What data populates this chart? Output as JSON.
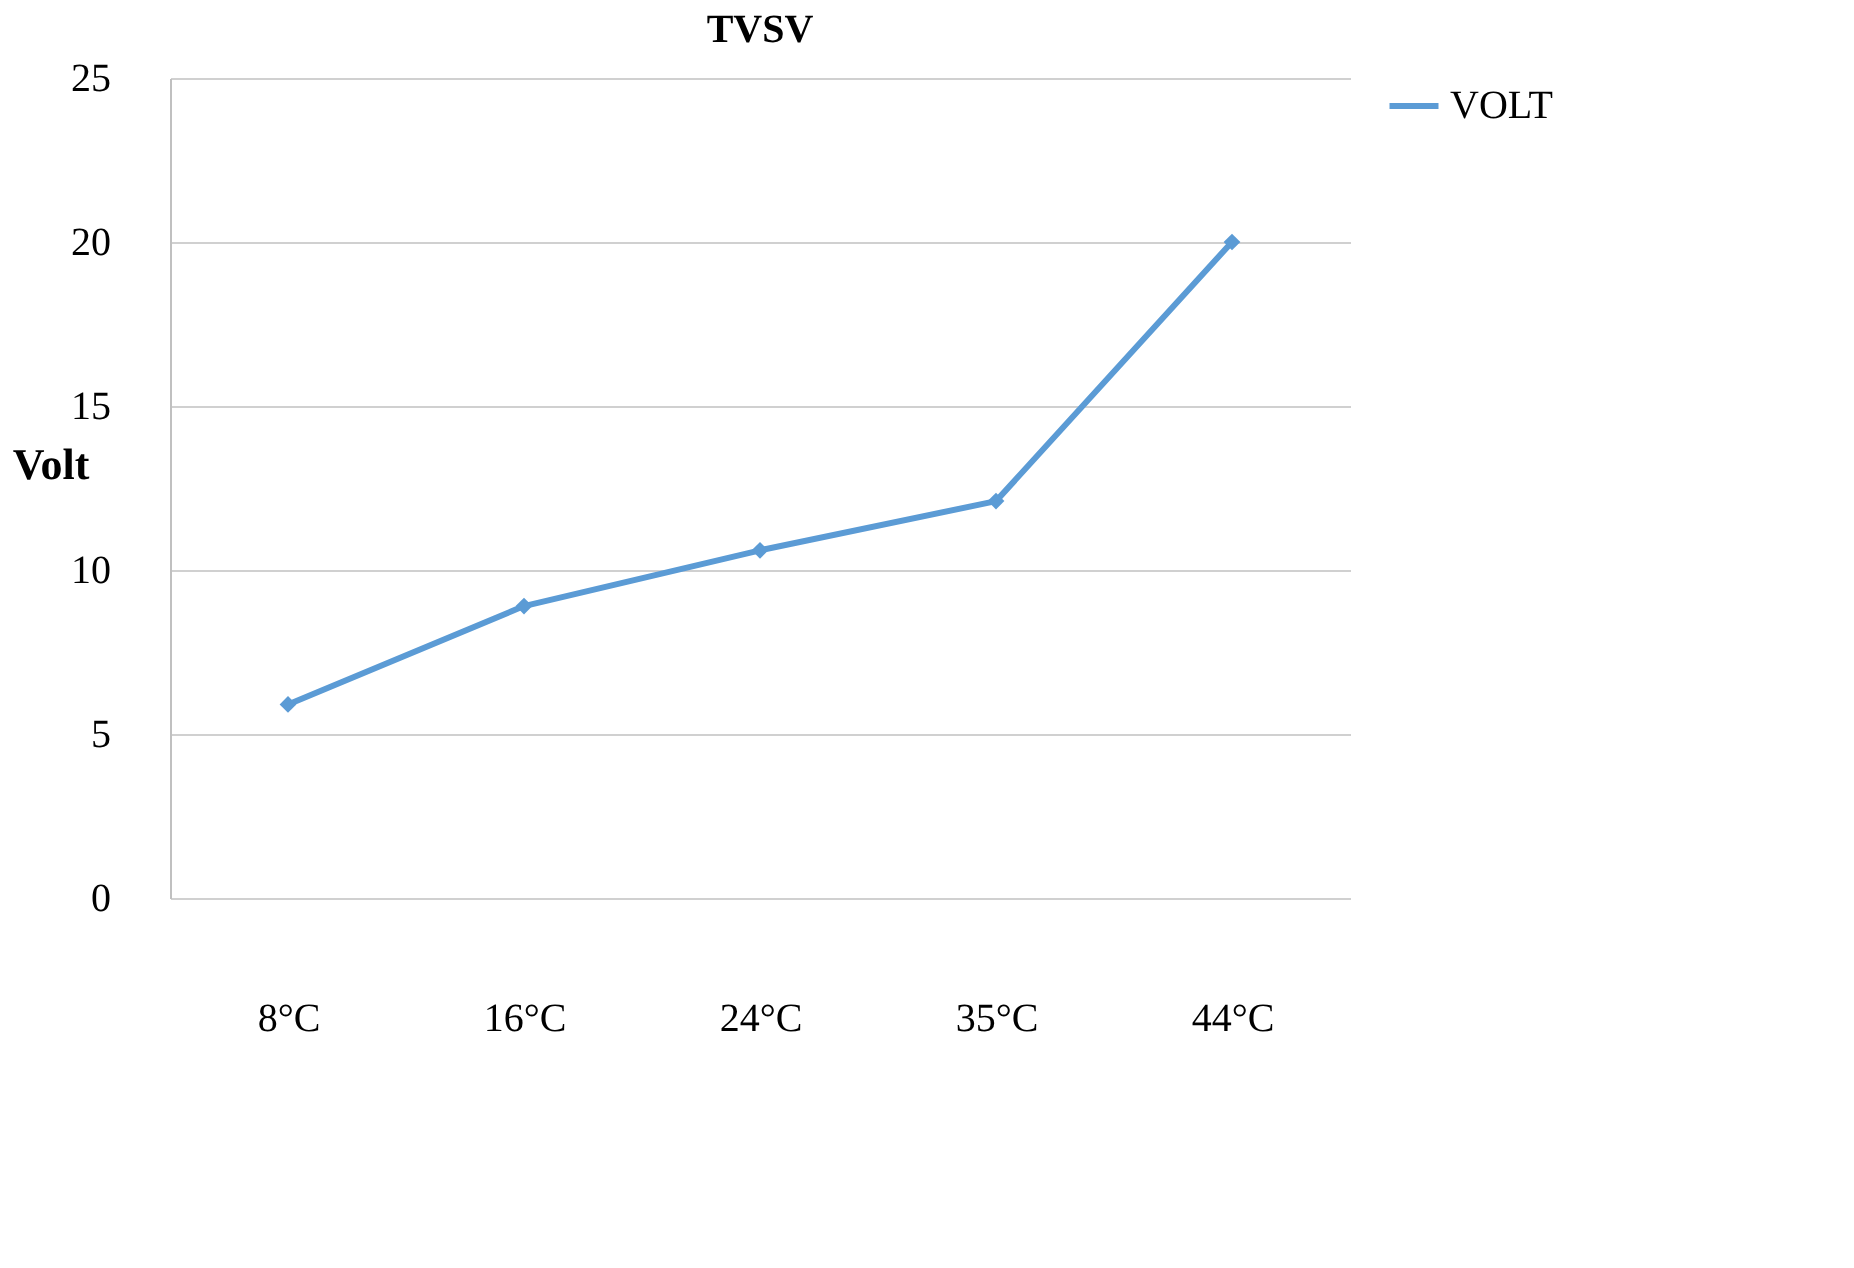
{
  "chart_data": {
    "type": "line",
    "title": "TVSV",
    "ylabel": "Volt",
    "categories": [
      "8°C",
      "16°C",
      "24°C",
      "35°C",
      "44°C"
    ],
    "series": [
      {
        "name": "VOLT",
        "color": "#5b9bd5",
        "values": [
          5.9,
          8.9,
          10.6,
          12.1,
          20
        ]
      }
    ],
    "ylim": [
      0,
      25
    ],
    "yticks": [
      0,
      5,
      10,
      15,
      20,
      25
    ],
    "grid": "y",
    "legend": "right",
    "marker": "diamond",
    "line_style": "solid"
  }
}
